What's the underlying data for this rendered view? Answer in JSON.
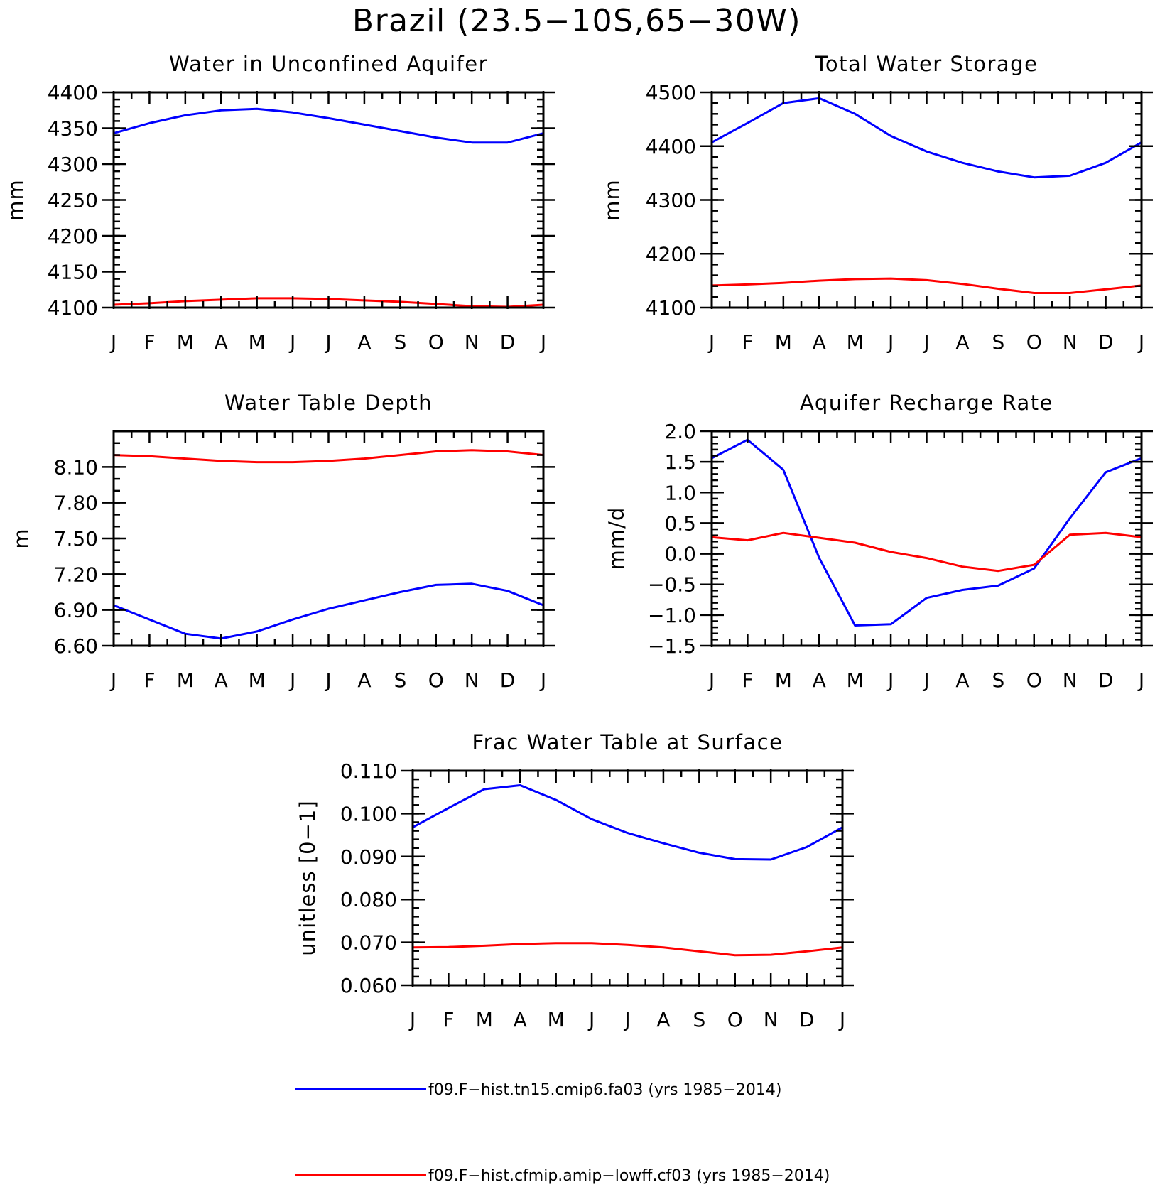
{
  "main_title": "Brazil (23.5−10S,65−30W)",
  "colors": {
    "model_1": "#0000ff",
    "model_2": "#ff0000",
    "axes": "#000000",
    "background": "#ffffff"
  },
  "legend": [
    {
      "color": "#0000ff",
      "label": "f09.F−hist.tn15.cmip6.fa03 (yrs 1985−2014)"
    },
    {
      "color": "#ff0000",
      "label": "f09.F−hist.cfmip.amip−lowff.cf03 (yrs 1985−2014)"
    }
  ],
  "chart_data": [
    {
      "type": "line",
      "title": "Water in Unconfined Aquifer",
      "ylabel": "mm",
      "xlabel": "",
      "x": [
        "J",
        "F",
        "M",
        "A",
        "M",
        "J",
        "J",
        "A",
        "S",
        "O",
        "N",
        "D",
        "J"
      ],
      "ylim": [
        4100,
        4400
      ],
      "yticks": [
        4100,
        4150,
        4200,
        4250,
        4300,
        4350,
        4400
      ],
      "ytick_labels": [
        "4100",
        "4150",
        "4200",
        "4250",
        "4300",
        "4350",
        "4400"
      ],
      "yminor": 10,
      "series": [
        {
          "color": "#0000ff",
          "values": [
            4343,
            4357,
            4368,
            4375,
            4377,
            4372,
            4364,
            4355,
            4346,
            4337,
            4330,
            4330,
            4343
          ]
        },
        {
          "color": "#ff0000",
          "values": [
            4104,
            4106,
            4109,
            4111,
            4113,
            4113,
            4112,
            4110,
            4108,
            4105,
            4102,
            4101,
            4104
          ]
        }
      ]
    },
    {
      "type": "line",
      "title": "Total Water Storage",
      "ylabel": "mm",
      "xlabel": "",
      "x": [
        "J",
        "F",
        "M",
        "A",
        "M",
        "J",
        "J",
        "A",
        "S",
        "O",
        "N",
        "D",
        "J"
      ],
      "ylim": [
        4100,
        4500
      ],
      "yticks": [
        4100,
        4200,
        4300,
        4400,
        4500
      ],
      "ytick_labels": [
        "4100",
        "4200",
        "4300",
        "4400",
        "4500"
      ],
      "yminor": 20,
      "series": [
        {
          "color": "#0000ff",
          "values": [
            4407,
            4443,
            4480,
            4489,
            4460,
            4419,
            4390,
            4369,
            4353,
            4342,
            4345,
            4369,
            4407
          ]
        },
        {
          "color": "#ff0000",
          "values": [
            4141,
            4143,
            4146,
            4150,
            4153,
            4154,
            4151,
            4144,
            4135,
            4127,
            4127,
            4134,
            4141
          ]
        }
      ]
    },
    {
      "type": "line",
      "title": "Water Table Depth",
      "ylabel": "m",
      "xlabel": "",
      "x": [
        "J",
        "F",
        "M",
        "A",
        "M",
        "J",
        "J",
        "A",
        "S",
        "O",
        "N",
        "D",
        "J"
      ],
      "ylim": [
        6.6,
        8.4
      ],
      "yticks": [
        6.6,
        6.9,
        7.2,
        7.5,
        7.8,
        8.1
      ],
      "ytick_labels": [
        "6.60",
        "6.90",
        "7.20",
        "7.50",
        "7.80",
        "8.10"
      ],
      "yminor": 0.1,
      "series": [
        {
          "color": "#0000ff",
          "values": [
            6.94,
            6.82,
            6.7,
            6.66,
            6.72,
            6.82,
            6.91,
            6.98,
            7.05,
            7.11,
            7.12,
            7.06,
            6.94
          ]
        },
        {
          "color": "#ff0000",
          "values": [
            8.2,
            8.19,
            8.17,
            8.15,
            8.14,
            8.14,
            8.15,
            8.17,
            8.2,
            8.23,
            8.24,
            8.23,
            8.2
          ]
        }
      ]
    },
    {
      "type": "line",
      "title": "Aquifer Recharge Rate",
      "ylabel": "mm/d",
      "xlabel": "",
      "x": [
        "J",
        "F",
        "M",
        "A",
        "M",
        "J",
        "J",
        "A",
        "S",
        "O",
        "N",
        "D",
        "J"
      ],
      "ylim": [
        -1.5,
        2.0
      ],
      "yticks": [
        -1.5,
        -1.0,
        -0.5,
        0.0,
        0.5,
        1.0,
        1.5,
        2.0
      ],
      "ytick_labels": [
        "−1.5",
        "−1.0",
        "−0.5",
        "0.0",
        "0.5",
        "1.0",
        "1.5",
        "2.0"
      ],
      "yminor": 0.1,
      "series": [
        {
          "color": "#0000ff",
          "values": [
            1.56,
            1.86,
            1.37,
            -0.07,
            -1.17,
            -1.15,
            -0.72,
            -0.59,
            -0.52,
            -0.24,
            0.58,
            1.33,
            1.56
          ]
        },
        {
          "color": "#ff0000",
          "values": [
            0.27,
            0.22,
            0.34,
            0.26,
            0.18,
            0.03,
            -0.07,
            -0.21,
            -0.28,
            -0.18,
            0.31,
            0.34,
            0.27
          ]
        }
      ]
    },
    {
      "type": "line",
      "title": "Frac Water Table at Surface",
      "ylabel": "unitless [0−1]",
      "xlabel": "",
      "x": [
        "J",
        "F",
        "M",
        "A",
        "M",
        "J",
        "J",
        "A",
        "S",
        "O",
        "N",
        "D",
        "J"
      ],
      "ylim": [
        0.06,
        0.11
      ],
      "yticks": [
        0.06,
        0.07,
        0.08,
        0.09,
        0.1,
        0.11
      ],
      "ytick_labels": [
        "0.060",
        "0.070",
        "0.080",
        "0.090",
        "0.100",
        "0.110"
      ],
      "yminor": 0.002,
      "series": [
        {
          "color": "#0000ff",
          "values": [
            0.0968,
            0.1013,
            0.1057,
            0.1066,
            0.1032,
            0.0987,
            0.0955,
            0.0931,
            0.0909,
            0.0894,
            0.0893,
            0.0922,
            0.0968
          ]
        },
        {
          "color": "#ff0000",
          "values": [
            0.0688,
            0.0689,
            0.0692,
            0.0696,
            0.0698,
            0.0698,
            0.0694,
            0.0688,
            0.0679,
            0.067,
            0.0671,
            0.0679,
            0.0688
          ]
        }
      ]
    }
  ]
}
